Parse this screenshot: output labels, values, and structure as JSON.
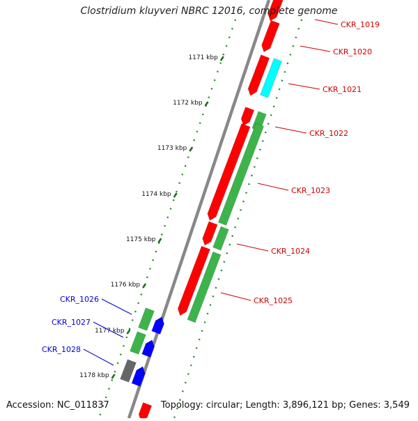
{
  "title": "Clostridium kluyveri NBRC 12016, complete genome",
  "footer": {
    "accession": "Accession: NC_011837",
    "topology": "Topology: circular; Length: 3,896,121 bp; Genes: 3,549"
  },
  "ticks": [
    "1171 kbp",
    "1172 kbp",
    "1173 kbp",
    "1174 kbp",
    "1175 kbp",
    "1176 kbp",
    "1177 kbp",
    "1178 kbp"
  ],
  "genes": [
    {
      "name": "CKR_1019",
      "color": "#ff0000",
      "strand": "forward"
    },
    {
      "name": "CKR_1020",
      "color": "#ff0000",
      "strand": "forward"
    },
    {
      "name": "CKR_1021",
      "color": "#00ffff",
      "strand": "forward"
    },
    {
      "name": "CKR_1022",
      "color": "#ff0000",
      "strand": "forward"
    },
    {
      "name": "CKR_1023",
      "color": "#ff0000",
      "strand": "forward"
    },
    {
      "name": "CKR_1024",
      "color": "#ff0000",
      "strand": "forward"
    },
    {
      "name": "CKR_1025",
      "color": "#ff0000",
      "strand": "forward"
    },
    {
      "name": "CKR_1026",
      "color": "#3cb44b",
      "strand": "reverse"
    },
    {
      "name": "CKR_1027",
      "color": "#3cb44b",
      "strand": "reverse"
    },
    {
      "name": "CKR_1028",
      "color": "#666666",
      "strand": "reverse"
    }
  ],
  "colors": {
    "forward_label": "#cc0000",
    "reverse_label": "#0000cc",
    "cds_green": "#3cb44b",
    "cds_blue": "#0000ff",
    "backbone": "#888888",
    "tick_dots": "#228b22"
  }
}
